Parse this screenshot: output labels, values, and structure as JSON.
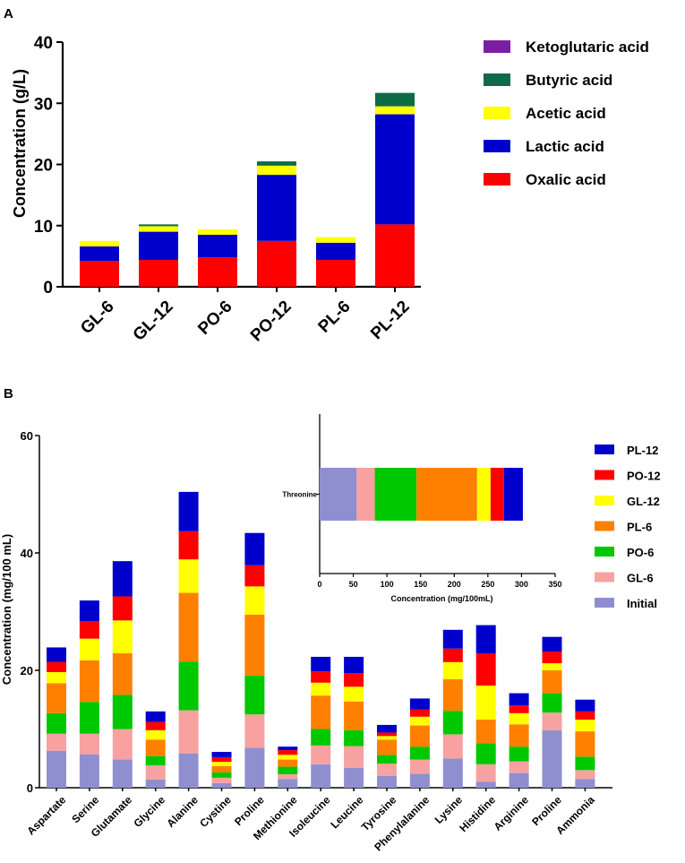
{
  "colors": {
    "ketoglutaric": "#7b1fa2",
    "butyric": "#0e6b47",
    "acetic": "#ffff00",
    "lactic": "#0000cc",
    "oxalic": "#ff0000",
    "PL-12": "#0000cc",
    "PO-12": "#ff0000",
    "GL-12": "#ffff00",
    "PL-6": "#ff8000",
    "PO-6": "#00c800",
    "GL-6": "#f7a1a1",
    "Initial": "#8f8fd0"
  },
  "chart_data": [
    {
      "panel": "A",
      "type": "bar",
      "stacked": true,
      "ylabel": "Concentration (g/L)",
      "ylim": [
        0,
        40
      ],
      "yticks": [
        "0",
        "10",
        "20",
        "30",
        "40"
      ],
      "categories": [
        "GL-6",
        "GL-12",
        "PO-6",
        "PO-12",
        "PL-6",
        "PL-12"
      ],
      "series": [
        {
          "name": "Oxalic acid",
          "key": "oxalic",
          "values": [
            4.2,
            4.4,
            4.8,
            7.5,
            4.4,
            10.2
          ]
        },
        {
          "name": "Lactic acid",
          "key": "lactic",
          "values": [
            2.4,
            4.6,
            3.7,
            10.8,
            2.8,
            18.0
          ]
        },
        {
          "name": "Acetic acid",
          "key": "acetic",
          "values": [
            0.9,
            0.9,
            0.9,
            1.5,
            0.9,
            1.3
          ]
        },
        {
          "name": "Butyric acid",
          "key": "butyric",
          "values": [
            0,
            0.3,
            0,
            0.7,
            0,
            2.2
          ]
        },
        {
          "name": "Ketoglutaric acid",
          "key": "ketoglutaric",
          "values": [
            0,
            0,
            0,
            0,
            0,
            0
          ]
        }
      ],
      "legend": [
        "Ketoglutaric acid",
        "Butyric acid",
        "Acetic acid",
        "Lactic acid",
        "Oxalic acid"
      ]
    },
    {
      "panel": "B",
      "type": "bar",
      "stacked": true,
      "ylabel": "Concentration (mg/100 mL)",
      "ylim": [
        0,
        60
      ],
      "yticks": [
        "0",
        "20",
        "40",
        "60"
      ],
      "categories": [
        "Aspartate",
        "Serine",
        "Glutamate",
        "Glycine",
        "Alanine",
        "Cystine",
        "Proline",
        "Methionine",
        "Isoleucine",
        "Leucine",
        "Tyrosine",
        "Phenylalanine",
        "Lysine",
        "Histidine",
        "Arginine",
        "Proline",
        "Ammonia"
      ],
      "series": [
        {
          "name": "Initial",
          "values": [
            6.3,
            5.7,
            4.8,
            1.4,
            5.8,
            0.8,
            6.8,
            1.5,
            4.0,
            3.4,
            2.0,
            2.4,
            5.0,
            1.0,
            2.5,
            9.8,
            1.5
          ]
        },
        {
          "name": "GL-6",
          "values": [
            2.9,
            3.5,
            5.2,
            2.4,
            7.4,
            0.9,
            5.7,
            0.8,
            3.2,
            3.7,
            2.1,
            2.4,
            4.1,
            3.0,
            2.0,
            3.0,
            1.5
          ]
        },
        {
          "name": "PO-6",
          "values": [
            3.5,
            5.4,
            5.8,
            1.6,
            8.3,
            0.9,
            6.6,
            1.3,
            2.8,
            2.7,
            1.5,
            2.2,
            4.0,
            3.6,
            2.5,
            3.3,
            2.3
          ]
        },
        {
          "name": "PL-6",
          "values": [
            5.1,
            7.1,
            7.1,
            2.8,
            11.7,
            1.1,
            10.4,
            1.2,
            5.7,
            4.9,
            2.6,
            3.6,
            5.4,
            4.0,
            3.8,
            3.9,
            4.3
          ]
        },
        {
          "name": "GL-12",
          "values": [
            1.9,
            3.7,
            5.6,
            1.6,
            5.7,
            0.7,
            4.8,
            0.8,
            2.2,
            2.5,
            0.6,
            1.5,
            2.9,
            5.8,
            1.9,
            1.2,
            2.0
          ]
        },
        {
          "name": "PO-12",
          "values": [
            1.7,
            3.0,
            4.1,
            1.4,
            4.8,
            0.8,
            3.6,
            0.8,
            1.9,
            2.3,
            0.6,
            1.2,
            2.3,
            5.5,
            1.3,
            2.0,
            1.4
          ]
        },
        {
          "name": "PL-12",
          "values": [
            2.5,
            3.5,
            6.0,
            1.8,
            6.7,
            0.9,
            5.5,
            0.6,
            2.5,
            2.8,
            1.3,
            1.9,
            3.2,
            4.8,
            2.1,
            2.5,
            2.0
          ]
        }
      ],
      "legend": [
        "PL-12",
        "PO-12",
        "GL-12",
        "PL-6",
        "PO-6",
        "GL-6",
        "Initial"
      ]
    },
    {
      "panel": "B-inset",
      "type": "bar",
      "orientation": "horizontal",
      "stacked": true,
      "xlabel": "Concentration (mg/100mL)",
      "xlim": [
        0,
        350
      ],
      "xticks": [
        "0",
        "50",
        "100",
        "150",
        "200",
        "250",
        "300",
        "350"
      ],
      "categories": [
        "Threonine"
      ],
      "series": [
        {
          "name": "Initial",
          "values": [
            55
          ]
        },
        {
          "name": "GL-6",
          "values": [
            27
          ]
        },
        {
          "name": "PO-6",
          "values": [
            62
          ]
        },
        {
          "name": "PL-6",
          "values": [
            90
          ]
        },
        {
          "name": "GL-12",
          "values": [
            20
          ]
        },
        {
          "name": "PO-12",
          "values": [
            20
          ]
        },
        {
          "name": "PL-12",
          "values": [
            28
          ]
        }
      ]
    }
  ]
}
